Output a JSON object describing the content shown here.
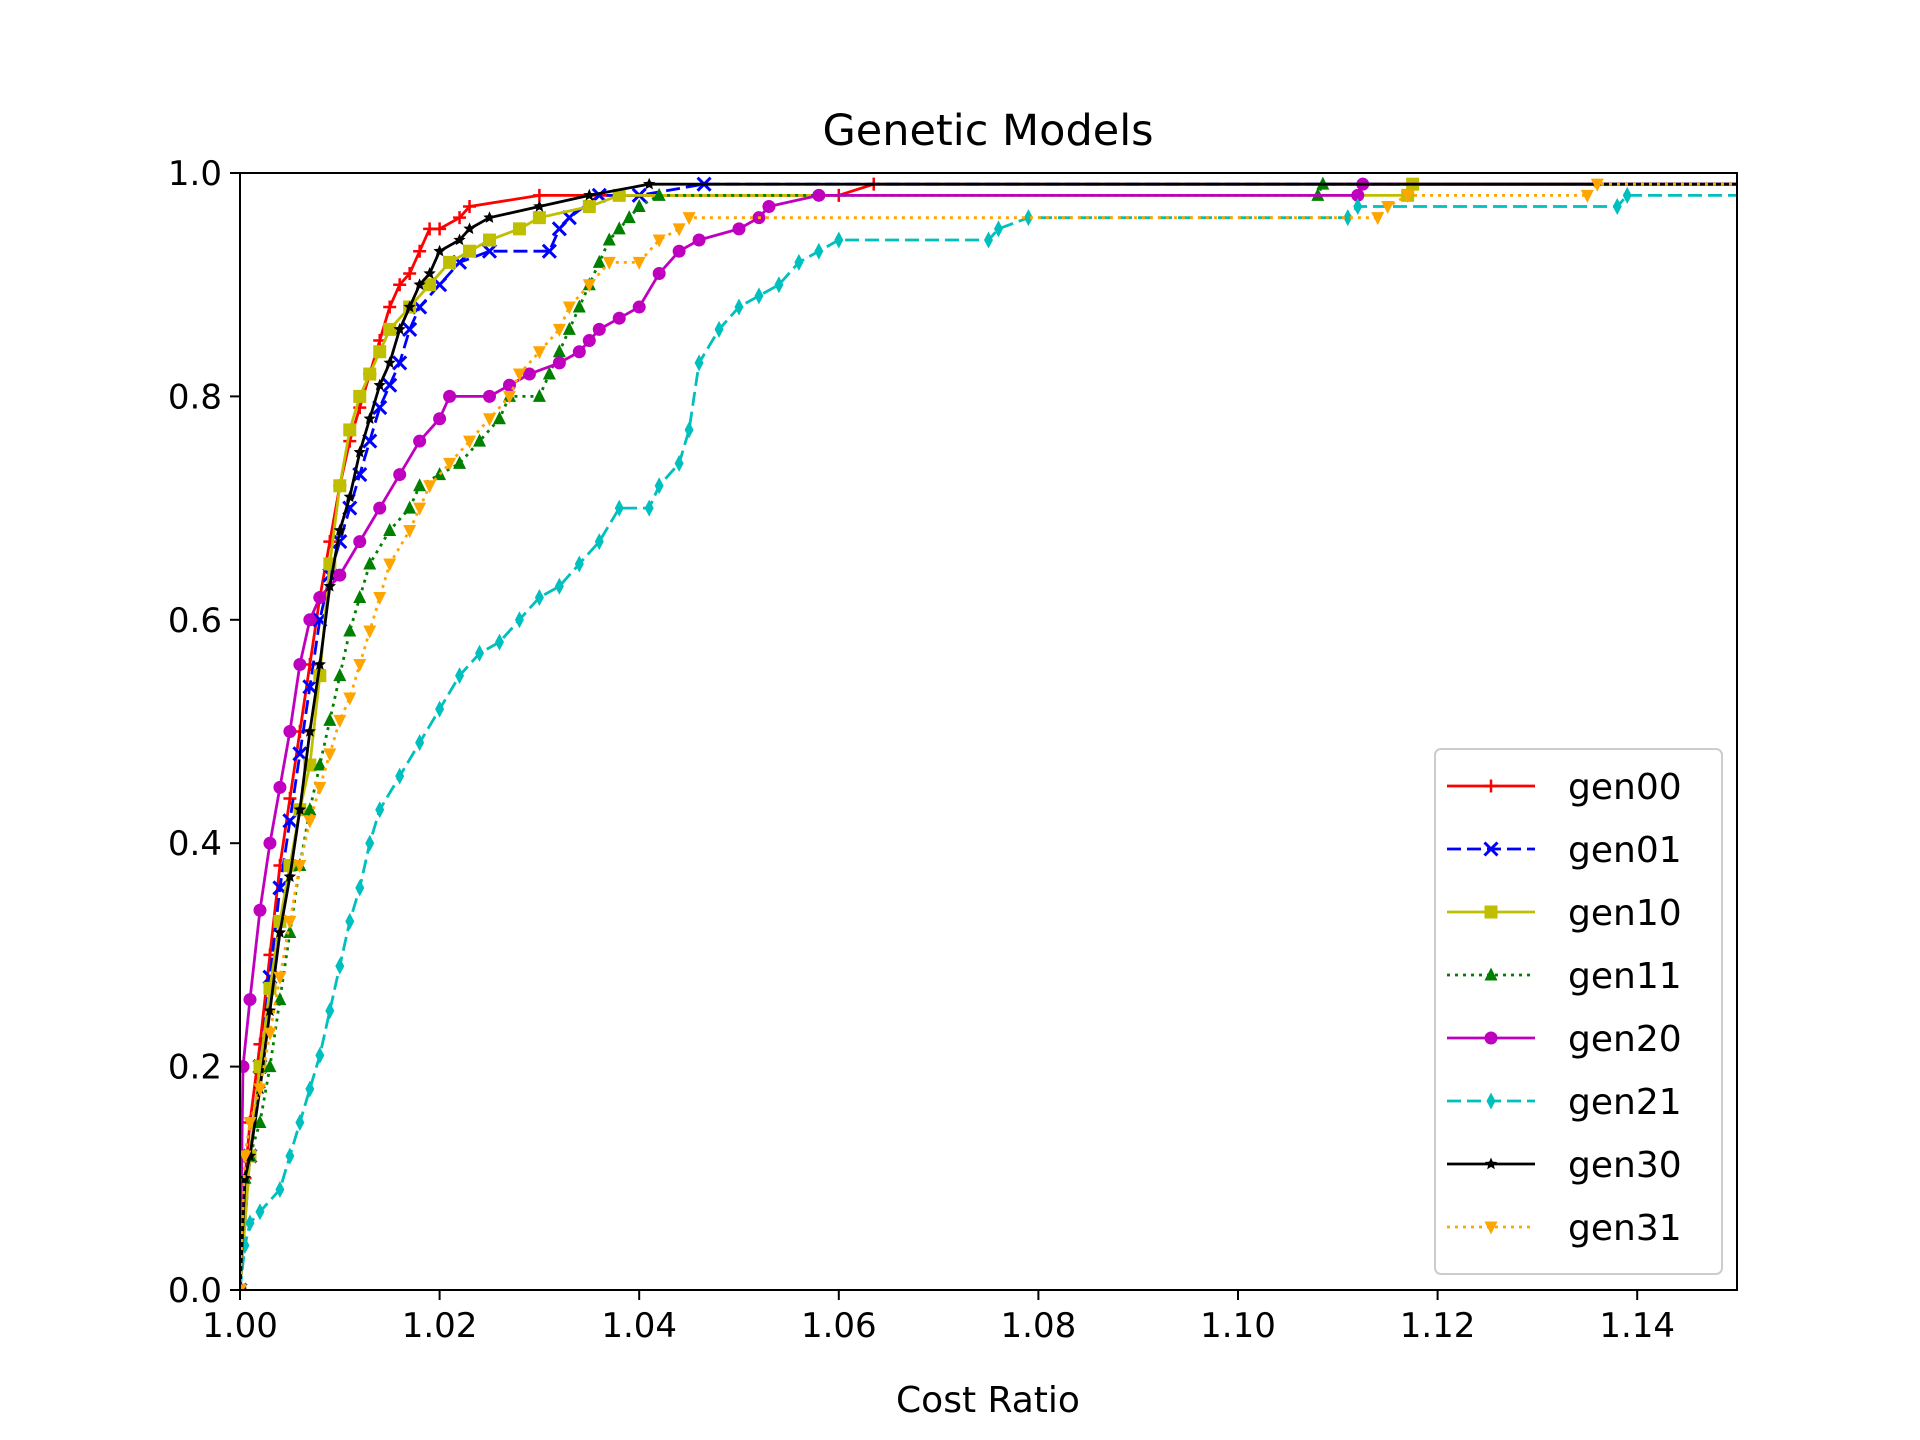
{
  "chart_data": {
    "type": "line",
    "title": "Genetic Models",
    "xlabel": "Cost Ratio",
    "ylabel": "",
    "xlim": [
      1.0,
      1.15
    ],
    "ylim": [
      0.0,
      1.0
    ],
    "x_ticks": [
      "1.00",
      "1.02",
      "1.04",
      "1.06",
      "1.08",
      "1.10",
      "1.12",
      "1.14"
    ],
    "y_ticks": [
      "0.0",
      "0.2",
      "0.4",
      "0.6",
      "0.8",
      "1.0"
    ],
    "grid": false,
    "legend_position": "bottom-right",
    "series": [
      {
        "name": "gen00",
        "color": "#ff0000",
        "dash": "solid",
        "marker": "plus",
        "points": [
          [
            1.0,
            0.0
          ],
          [
            1.0005,
            0.1
          ],
          [
            1.001,
            0.15
          ],
          [
            1.002,
            0.22
          ],
          [
            1.003,
            0.3
          ],
          [
            1.004,
            0.38
          ],
          [
            1.005,
            0.44
          ],
          [
            1.006,
            0.5
          ],
          [
            1.007,
            0.56
          ],
          [
            1.008,
            0.62
          ],
          [
            1.009,
            0.67
          ],
          [
            1.01,
            0.72
          ],
          [
            1.011,
            0.76
          ],
          [
            1.012,
            0.79
          ],
          [
            1.013,
            0.82
          ],
          [
            1.014,
            0.85
          ],
          [
            1.015,
            0.88
          ],
          [
            1.016,
            0.9
          ],
          [
            1.017,
            0.91
          ],
          [
            1.018,
            0.93
          ],
          [
            1.019,
            0.95
          ],
          [
            1.02,
            0.95
          ],
          [
            1.022,
            0.96
          ],
          [
            1.023,
            0.97
          ],
          [
            1.03,
            0.98
          ],
          [
            1.06,
            0.98
          ],
          [
            1.0635,
            0.99
          ],
          [
            1.15,
            0.99
          ]
        ]
      },
      {
        "name": "gen01",
        "color": "#0000ff",
        "dash": "dashed",
        "marker": "x",
        "points": [
          [
            1.0,
            0.0
          ],
          [
            1.001,
            0.12
          ],
          [
            1.002,
            0.2
          ],
          [
            1.003,
            0.28
          ],
          [
            1.004,
            0.36
          ],
          [
            1.005,
            0.42
          ],
          [
            1.006,
            0.48
          ],
          [
            1.007,
            0.54
          ],
          [
            1.008,
            0.6
          ],
          [
            1.009,
            0.64
          ],
          [
            1.01,
            0.67
          ],
          [
            1.011,
            0.7
          ],
          [
            1.012,
            0.73
          ],
          [
            1.013,
            0.76
          ],
          [
            1.014,
            0.79
          ],
          [
            1.015,
            0.81
          ],
          [
            1.016,
            0.83
          ],
          [
            1.017,
            0.86
          ],
          [
            1.018,
            0.88
          ],
          [
            1.02,
            0.9
          ],
          [
            1.022,
            0.92
          ],
          [
            1.025,
            0.93
          ],
          [
            1.031,
            0.93
          ],
          [
            1.032,
            0.95
          ],
          [
            1.033,
            0.96
          ],
          [
            1.036,
            0.98
          ],
          [
            1.04,
            0.98
          ],
          [
            1.0465,
            0.99
          ],
          [
            1.15,
            0.99
          ]
        ]
      },
      {
        "name": "gen10",
        "color": "#bfbf00",
        "dash": "solid",
        "marker": "square",
        "points": [
          [
            1.0,
            0.0
          ],
          [
            1.001,
            0.12
          ],
          [
            1.002,
            0.2
          ],
          [
            1.003,
            0.27
          ],
          [
            1.004,
            0.33
          ],
          [
            1.005,
            0.38
          ],
          [
            1.006,
            0.43
          ],
          [
            1.007,
            0.47
          ],
          [
            1.008,
            0.55
          ],
          [
            1.009,
            0.65
          ],
          [
            1.01,
            0.72
          ],
          [
            1.011,
            0.77
          ],
          [
            1.012,
            0.8
          ],
          [
            1.013,
            0.82
          ],
          [
            1.014,
            0.84
          ],
          [
            1.015,
            0.86
          ],
          [
            1.017,
            0.88
          ],
          [
            1.019,
            0.9
          ],
          [
            1.021,
            0.92
          ],
          [
            1.023,
            0.93
          ],
          [
            1.025,
            0.94
          ],
          [
            1.028,
            0.95
          ],
          [
            1.03,
            0.96
          ],
          [
            1.035,
            0.97
          ],
          [
            1.038,
            0.98
          ],
          [
            1.117,
            0.98
          ],
          [
            1.1175,
            0.99
          ],
          [
            1.15,
            0.99
          ]
        ]
      },
      {
        "name": "gen11",
        "color": "#008000",
        "dash": "dotted",
        "marker": "triangle-up",
        "points": [
          [
            1.0,
            0.0
          ],
          [
            1.0005,
            0.1
          ],
          [
            1.001,
            0.12
          ],
          [
            1.002,
            0.15
          ],
          [
            1.003,
            0.2
          ],
          [
            1.004,
            0.26
          ],
          [
            1.005,
            0.32
          ],
          [
            1.006,
            0.38
          ],
          [
            1.007,
            0.43
          ],
          [
            1.008,
            0.47
          ],
          [
            1.009,
            0.51
          ],
          [
            1.01,
            0.55
          ],
          [
            1.011,
            0.59
          ],
          [
            1.012,
            0.62
          ],
          [
            1.013,
            0.65
          ],
          [
            1.015,
            0.68
          ],
          [
            1.017,
            0.7
          ],
          [
            1.018,
            0.72
          ],
          [
            1.02,
            0.73
          ],
          [
            1.022,
            0.74
          ],
          [
            1.024,
            0.76
          ],
          [
            1.026,
            0.78
          ],
          [
            1.027,
            0.8
          ],
          [
            1.03,
            0.8
          ],
          [
            1.031,
            0.82
          ],
          [
            1.032,
            0.84
          ],
          [
            1.033,
            0.86
          ],
          [
            1.034,
            0.88
          ],
          [
            1.035,
            0.9
          ],
          [
            1.036,
            0.92
          ],
          [
            1.037,
            0.94
          ],
          [
            1.038,
            0.95
          ],
          [
            1.039,
            0.96
          ],
          [
            1.04,
            0.97
          ],
          [
            1.042,
            0.98
          ],
          [
            1.108,
            0.98
          ],
          [
            1.1085,
            0.99
          ],
          [
            1.15,
            0.99
          ]
        ]
      },
      {
        "name": "gen20",
        "color": "#bf00bf",
        "dash": "solid",
        "marker": "circle",
        "points": [
          [
            1.0,
            0.0
          ],
          [
            1.0003,
            0.2
          ],
          [
            1.001,
            0.26
          ],
          [
            1.002,
            0.34
          ],
          [
            1.003,
            0.4
          ],
          [
            1.004,
            0.45
          ],
          [
            1.005,
            0.5
          ],
          [
            1.006,
            0.56
          ],
          [
            1.007,
            0.6
          ],
          [
            1.008,
            0.62
          ],
          [
            1.01,
            0.64
          ],
          [
            1.012,
            0.67
          ],
          [
            1.014,
            0.7
          ],
          [
            1.016,
            0.73
          ],
          [
            1.018,
            0.76
          ],
          [
            1.02,
            0.78
          ],
          [
            1.021,
            0.8
          ],
          [
            1.025,
            0.8
          ],
          [
            1.027,
            0.81
          ],
          [
            1.029,
            0.82
          ],
          [
            1.032,
            0.83
          ],
          [
            1.034,
            0.84
          ],
          [
            1.035,
            0.85
          ],
          [
            1.036,
            0.86
          ],
          [
            1.038,
            0.87
          ],
          [
            1.04,
            0.88
          ],
          [
            1.042,
            0.91
          ],
          [
            1.044,
            0.93
          ],
          [
            1.046,
            0.94
          ],
          [
            1.05,
            0.95
          ],
          [
            1.052,
            0.96
          ],
          [
            1.053,
            0.97
          ],
          [
            1.058,
            0.98
          ],
          [
            1.112,
            0.98
          ],
          [
            1.1125,
            0.99
          ],
          [
            1.15,
            0.99
          ]
        ]
      },
      {
        "name": "gen21",
        "color": "#00bfbf",
        "dash": "dashed",
        "marker": "diamond",
        "points": [
          [
            1.0,
            0.0
          ],
          [
            1.0005,
            0.04
          ],
          [
            1.001,
            0.06
          ],
          [
            1.002,
            0.07
          ],
          [
            1.004,
            0.09
          ],
          [
            1.005,
            0.12
          ],
          [
            1.006,
            0.15
          ],
          [
            1.007,
            0.18
          ],
          [
            1.008,
            0.21
          ],
          [
            1.009,
            0.25
          ],
          [
            1.01,
            0.29
          ],
          [
            1.011,
            0.33
          ],
          [
            1.012,
            0.36
          ],
          [
            1.013,
            0.4
          ],
          [
            1.014,
            0.43
          ],
          [
            1.016,
            0.46
          ],
          [
            1.018,
            0.49
          ],
          [
            1.02,
            0.52
          ],
          [
            1.022,
            0.55
          ],
          [
            1.024,
            0.57
          ],
          [
            1.026,
            0.58
          ],
          [
            1.028,
            0.6
          ],
          [
            1.03,
            0.62
          ],
          [
            1.032,
            0.63
          ],
          [
            1.034,
            0.65
          ],
          [
            1.036,
            0.67
          ],
          [
            1.038,
            0.7
          ],
          [
            1.041,
            0.7
          ],
          [
            1.042,
            0.72
          ],
          [
            1.044,
            0.74
          ],
          [
            1.045,
            0.77
          ],
          [
            1.046,
            0.83
          ],
          [
            1.048,
            0.86
          ],
          [
            1.05,
            0.88
          ],
          [
            1.052,
            0.89
          ],
          [
            1.054,
            0.9
          ],
          [
            1.056,
            0.92
          ],
          [
            1.058,
            0.93
          ],
          [
            1.06,
            0.94
          ],
          [
            1.075,
            0.94
          ],
          [
            1.076,
            0.95
          ],
          [
            1.079,
            0.96
          ],
          [
            1.111,
            0.96
          ],
          [
            1.112,
            0.97
          ],
          [
            1.138,
            0.97
          ],
          [
            1.139,
            0.98
          ],
          [
            1.15,
            0.98
          ]
        ]
      },
      {
        "name": "gen30",
        "color": "#000000",
        "dash": "solid",
        "marker": "star",
        "points": [
          [
            1.0,
            0.0
          ],
          [
            1.0005,
            0.1
          ],
          [
            1.001,
            0.12
          ],
          [
            1.002,
            0.18
          ],
          [
            1.003,
            0.25
          ],
          [
            1.004,
            0.32
          ],
          [
            1.005,
            0.37
          ],
          [
            1.006,
            0.43
          ],
          [
            1.007,
            0.5
          ],
          [
            1.008,
            0.56
          ],
          [
            1.009,
            0.63
          ],
          [
            1.01,
            0.68
          ],
          [
            1.011,
            0.71
          ],
          [
            1.012,
            0.75
          ],
          [
            1.013,
            0.78
          ],
          [
            1.014,
            0.81
          ],
          [
            1.015,
            0.83
          ],
          [
            1.016,
            0.86
          ],
          [
            1.017,
            0.88
          ],
          [
            1.018,
            0.9
          ],
          [
            1.019,
            0.91
          ],
          [
            1.02,
            0.93
          ],
          [
            1.022,
            0.94
          ],
          [
            1.023,
            0.95
          ],
          [
            1.025,
            0.96
          ],
          [
            1.03,
            0.97
          ],
          [
            1.035,
            0.98
          ],
          [
            1.041,
            0.99
          ],
          [
            1.15,
            0.99
          ]
        ]
      },
      {
        "name": "gen31",
        "color": "#ffa500",
        "dash": "dotted",
        "marker": "triangle-down",
        "points": [
          [
            1.0,
            0.0
          ],
          [
            1.0005,
            0.12
          ],
          [
            1.001,
            0.15
          ],
          [
            1.002,
            0.18
          ],
          [
            1.003,
            0.23
          ],
          [
            1.004,
            0.28
          ],
          [
            1.005,
            0.33
          ],
          [
            1.006,
            0.38
          ],
          [
            1.007,
            0.42
          ],
          [
            1.008,
            0.45
          ],
          [
            1.009,
            0.48
          ],
          [
            1.01,
            0.51
          ],
          [
            1.011,
            0.53
          ],
          [
            1.012,
            0.56
          ],
          [
            1.013,
            0.59
          ],
          [
            1.014,
            0.62
          ],
          [
            1.015,
            0.65
          ],
          [
            1.017,
            0.68
          ],
          [
            1.018,
            0.7
          ],
          [
            1.019,
            0.72
          ],
          [
            1.021,
            0.74
          ],
          [
            1.023,
            0.76
          ],
          [
            1.025,
            0.78
          ],
          [
            1.027,
            0.8
          ],
          [
            1.028,
            0.82
          ],
          [
            1.03,
            0.84
          ],
          [
            1.032,
            0.86
          ],
          [
            1.033,
            0.88
          ],
          [
            1.035,
            0.9
          ],
          [
            1.037,
            0.92
          ],
          [
            1.04,
            0.92
          ],
          [
            1.042,
            0.94
          ],
          [
            1.044,
            0.95
          ],
          [
            1.045,
            0.96
          ],
          [
            1.114,
            0.96
          ],
          [
            1.115,
            0.97
          ],
          [
            1.117,
            0.98
          ],
          [
            1.135,
            0.98
          ],
          [
            1.136,
            0.99
          ],
          [
            1.15,
            0.99
          ]
        ]
      }
    ]
  }
}
